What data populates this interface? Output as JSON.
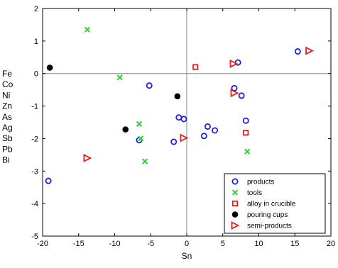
{
  "chart_data": {
    "type": "scatter",
    "title": "",
    "xlabel": "Sn",
    "ylabel_lines": [
      "Fe",
      "Co",
      "Ni",
      "Zn",
      "As",
      "Ag",
      "Sb",
      "Pb",
      "Bi"
    ],
    "xlim": [
      -20,
      20
    ],
    "ylim": [
      -5,
      2
    ],
    "xticks": [
      -20,
      -15,
      -10,
      -5,
      0,
      5,
      10,
      15,
      20
    ],
    "yticks": [
      -5,
      -4,
      -3,
      -2,
      -1,
      0,
      1,
      2
    ],
    "zero_lines": true,
    "grid": false,
    "legend_position": "bottom-right",
    "series": [
      {
        "name": "products",
        "marker": "circle-open",
        "color": "#1f1fe0",
        "points": [
          [
            -19.2,
            -3.3
          ],
          [
            -6.6,
            -2.05
          ],
          [
            -5.2,
            -0.37
          ],
          [
            -1.8,
            -2.1
          ],
          [
            -1.1,
            -1.35
          ],
          [
            -0.4,
            -1.4
          ],
          [
            2.4,
            -1.92
          ],
          [
            2.9,
            -1.63
          ],
          [
            3.9,
            -1.75
          ],
          [
            6.6,
            -0.45
          ],
          [
            7.1,
            0.34
          ],
          [
            7.6,
            -0.68
          ],
          [
            8.2,
            -1.45
          ],
          [
            15.4,
            0.68
          ]
        ]
      },
      {
        "name": "tools",
        "marker": "x",
        "color": "#33cc33",
        "points": [
          [
            -13.8,
            1.35
          ],
          [
            -9.3,
            -0.12
          ],
          [
            -6.6,
            -1.55
          ],
          [
            -6.4,
            -2.0
          ],
          [
            -5.8,
            -2.7
          ],
          [
            8.4,
            -2.4
          ]
        ]
      },
      {
        "name": "alloy in crucible",
        "marker": "square-open",
        "color": "#e02020",
        "points": [
          [
            1.2,
            0.2
          ],
          [
            8.2,
            -1.82
          ]
        ]
      },
      {
        "name": "pouring cups",
        "marker": "circle-filled",
        "color": "#000000",
        "points": [
          [
            -19.0,
            0.18
          ],
          [
            -8.5,
            -1.72
          ],
          [
            -1.3,
            -0.7
          ]
        ]
      },
      {
        "name": "semi-products",
        "marker": "triangle-right-open",
        "color": "#e02020",
        "points": [
          [
            -13.8,
            -2.6
          ],
          [
            -0.4,
            -1.98
          ],
          [
            6.5,
            0.3
          ],
          [
            6.6,
            -0.6
          ],
          [
            17.0,
            0.7
          ]
        ]
      }
    ]
  }
}
